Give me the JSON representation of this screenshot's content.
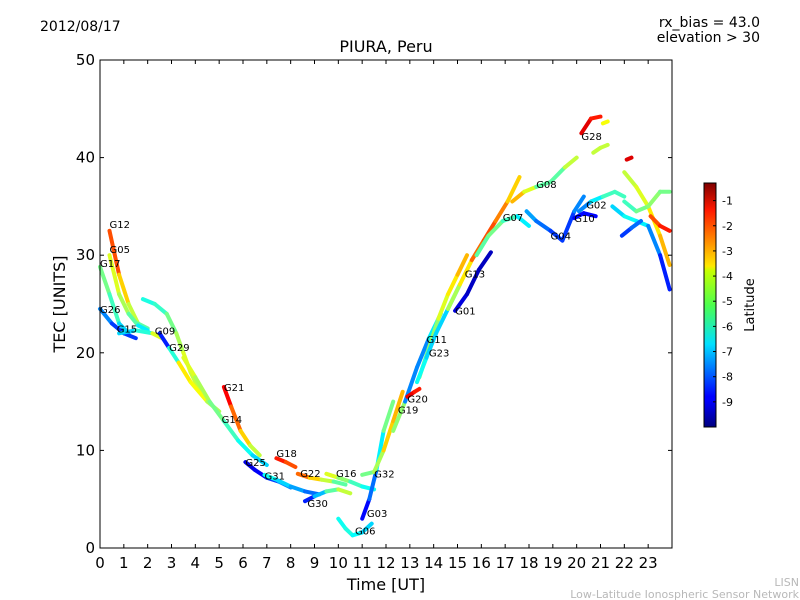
{
  "header": {
    "date": "2012/08/17",
    "bias_label": "rx_bias = 43.0",
    "elevation_label": "elevation > 30"
  },
  "chart_data": {
    "type": "scatter",
    "title": "PIURA, Peru",
    "xlabel": "Time [UT]",
    "ylabel": "TEC [UNITS]",
    "xlim": [
      0,
      24
    ],
    "ylim": [
      0,
      50
    ],
    "xticks": [
      0,
      1,
      2,
      3,
      4,
      5,
      6,
      7,
      8,
      9,
      10,
      11,
      12,
      13,
      14,
      15,
      16,
      17,
      18,
      19,
      20,
      21,
      22,
      23
    ],
    "yticks": [
      0,
      10,
      20,
      30,
      40,
      50
    ],
    "colorbar": {
      "label": "Latitude",
      "ticks": [
        -1,
        -2,
        -3,
        -4,
        -5,
        -6,
        -7,
        -8,
        -9
      ],
      "range": [
        -10,
        -0.3
      ]
    },
    "series": [
      {
        "name": "G12",
        "label_at": [
          0.4,
          32.8
        ],
        "points": [
          [
            0.4,
            32.5
          ],
          [
            0.8,
            28
          ],
          [
            1.2,
            25
          ],
          [
            1.6,
            23
          ],
          [
            2.0,
            22.5
          ]
        ],
        "lat": [
          -1.5,
          -3,
          -4,
          -5,
          -6
        ]
      },
      {
        "name": "G05",
        "label_at": [
          0.4,
          30.2
        ],
        "points": [
          [
            0.4,
            30
          ],
          [
            0.8,
            26
          ],
          [
            1.2,
            24
          ],
          [
            1.6,
            22.8
          ],
          [
            2.0,
            22.3
          ]
        ],
        "lat": [
          -4,
          -4.5,
          -5,
          -6,
          -7
        ]
      },
      {
        "name": "G17",
        "label_at": [
          0.0,
          28.8
        ],
        "points": [
          [
            0.0,
            28.8
          ],
          [
            0.4,
            26
          ],
          [
            0.8,
            23
          ],
          [
            1.2,
            22
          ]
        ],
        "lat": [
          -5,
          -5.5,
          -6,
          -7.5
        ]
      },
      {
        "name": "G26",
        "label_at": [
          0.0,
          24.1
        ],
        "points": [
          [
            0.0,
            24.5
          ],
          [
            0.5,
            23
          ],
          [
            1.0,
            22
          ],
          [
            1.5,
            21.5
          ]
        ],
        "lat": [
          -7,
          -8,
          -8.5,
          -8
        ]
      },
      {
        "name": "G15",
        "label_at": [
          0.7,
          22.1
        ],
        "points": [
          [
            0.8,
            22
          ],
          [
            1.5,
            22.3
          ],
          [
            2.2,
            22
          ],
          [
            2.6,
            21.5
          ]
        ],
        "lat": [
          -7,
          -6.5,
          -5.5,
          -3
        ]
      },
      {
        "name": "G09",
        "label_at": [
          2.3,
          21.9
        ],
        "points": [
          [
            1.8,
            25.5
          ],
          [
            2.3,
            25
          ],
          [
            2.8,
            24
          ],
          [
            3.2,
            22
          ],
          [
            3.5,
            20
          ],
          [
            3.8,
            18
          ],
          [
            4.2,
            16
          ]
        ],
        "lat": [
          -6,
          -6.2,
          -5.5,
          -5,
          -4.5,
          -4,
          -5
        ]
      },
      {
        "name": "G29",
        "label_at": [
          2.9,
          20.2
        ],
        "points": [
          [
            2.5,
            22
          ],
          [
            2.9,
            20.5
          ],
          [
            3.3,
            19
          ],
          [
            3.8,
            17
          ],
          [
            4.5,
            15
          ],
          [
            5.0,
            14
          ]
        ],
        "lat": [
          -9,
          -8,
          -4,
          -3.5,
          -4.5,
          -5
        ]
      },
      {
        "name": "G21",
        "label_at": [
          5.2,
          16.1
        ],
        "points": [
          [
            5.2,
            16.5
          ],
          [
            5.5,
            14.5
          ],
          [
            5.9,
            12
          ],
          [
            6.3,
            10.5
          ],
          [
            6.7,
            9.5
          ]
        ],
        "lat": [
          -1,
          -2,
          -3,
          -4,
          -5
        ]
      },
      {
        "name": "G14",
        "label_at": [
          5.1,
          12.8
        ],
        "points": [
          [
            3.5,
            19.5
          ],
          [
            4.0,
            17.5
          ],
          [
            4.6,
            15
          ],
          [
            5.2,
            13
          ],
          [
            5.8,
            11
          ],
          [
            6.4,
            9.5
          ],
          [
            7.0,
            8.5
          ]
        ],
        "lat": [
          -4,
          -4.5,
          -5,
          -5.5,
          -6,
          -6.5,
          -7
        ]
      },
      {
        "name": "G25",
        "label_at": [
          6.1,
          8.4
        ],
        "points": [
          [
            6.1,
            8.8
          ],
          [
            6.5,
            8
          ],
          [
            7.0,
            7.2
          ],
          [
            7.5,
            6.8
          ],
          [
            8.0,
            6.2
          ]
        ],
        "lat": [
          -9,
          -9.2,
          -8.5,
          -8,
          -7
        ]
      },
      {
        "name": "G31",
        "label_at": [
          6.9,
          7.0
        ],
        "points": [
          [
            6.9,
            7.5
          ],
          [
            7.4,
            7
          ],
          [
            8.0,
            6.3
          ],
          [
            8.6,
            5.8
          ],
          [
            9.2,
            5.5
          ]
        ],
        "lat": [
          -6,
          -6.5,
          -7,
          -7.5,
          -8
        ]
      },
      {
        "name": "G18",
        "label_at": [
          7.4,
          9.3
        ],
        "points": [
          [
            7.4,
            9.2
          ],
          [
            7.8,
            8.8
          ],
          [
            8.2,
            8.3
          ]
        ],
        "lat": [
          -1.5,
          -2,
          -2.5
        ]
      },
      {
        "name": "G22",
        "label_at": [
          8.4,
          7.3
        ],
        "points": [
          [
            8.3,
            7.6
          ],
          [
            8.8,
            7.2
          ],
          [
            9.3,
            7
          ],
          [
            9.8,
            6.8
          ],
          [
            10.3,
            6.5
          ]
        ],
        "lat": [
          -2,
          -3,
          -4,
          -5,
          -6
        ]
      },
      {
        "name": "G30",
        "label_at": [
          8.7,
          4.2
        ],
        "points": [
          [
            8.6,
            4.8
          ],
          [
            9.0,
            5.3
          ],
          [
            9.5,
            5.8
          ],
          [
            10.0,
            6
          ],
          [
            10.5,
            5.6
          ]
        ],
        "lat": [
          -9,
          -8,
          -6,
          -5,
          -4
        ]
      },
      {
        "name": "G16",
        "label_at": [
          9.9,
          7.3
        ],
        "points": [
          [
            9.5,
            7.6
          ],
          [
            10.0,
            7.2
          ],
          [
            10.5,
            6.8
          ],
          [
            11.0,
            6.3
          ],
          [
            11.5,
            6
          ]
        ],
        "lat": [
          -4,
          -4.5,
          -5.5,
          -6,
          -6.5
        ]
      },
      {
        "name": "G06",
        "label_at": [
          10.7,
          1.4
        ],
        "points": [
          [
            10.0,
            3
          ],
          [
            10.3,
            2
          ],
          [
            10.6,
            1.3
          ],
          [
            11.0,
            1.6
          ],
          [
            11.4,
            2.5
          ]
        ],
        "lat": [
          -6.5,
          -6,
          -6.2,
          -6.5,
          -7
        ]
      },
      {
        "name": "G03",
        "label_at": [
          11.2,
          3.2
        ],
        "points": [
          [
            11.0,
            3
          ],
          [
            11.3,
            5
          ],
          [
            11.6,
            8
          ],
          [
            11.9,
            12
          ],
          [
            12.3,
            15
          ]
        ],
        "lat": [
          -9,
          -8.5,
          -7,
          -6,
          -4.5
        ]
      },
      {
        "name": "G32",
        "label_at": [
          11.5,
          7.2
        ],
        "points": [
          [
            11.0,
            7.5
          ],
          [
            11.5,
            7.8
          ],
          [
            11.9,
            10
          ],
          [
            12.3,
            13
          ],
          [
            12.7,
            16
          ]
        ],
        "lat": [
          -5,
          -5.5,
          -4,
          -3,
          -3.5
        ]
      },
      {
        "name": "G19",
        "label_at": [
          12.5,
          13.8
        ],
        "points": [
          [
            12.3,
            12
          ],
          [
            12.8,
            15
          ],
          [
            13.3,
            18.5
          ],
          [
            13.8,
            21.5
          ],
          [
            14.3,
            24
          ]
        ],
        "lat": [
          -3,
          -7,
          -8,
          -7,
          -6
        ]
      },
      {
        "name": "G20",
        "label_at": [
          12.9,
          14.9
        ],
        "points": [
          [
            12.9,
            15.5
          ],
          [
            13.2,
            16
          ],
          [
            13.4,
            16.3
          ]
        ],
        "lat": [
          -1.2,
          -1.5,
          -2
        ]
      },
      {
        "name": "G11",
        "label_at": [
          13.7,
          21.0
        ],
        "points": [
          [
            13.4,
            17.5
          ],
          [
            13.8,
            20.5
          ],
          [
            14.2,
            23.5
          ],
          [
            14.6,
            26
          ],
          [
            15.0,
            28
          ],
          [
            15.4,
            30
          ]
        ],
        "lat": [
          -5,
          -5.5,
          -4.5,
          -4,
          -3.5,
          -3
        ]
      },
      {
        "name": "G23",
        "label_at": [
          13.8,
          19.6
        ],
        "points": [
          [
            13.3,
            17
          ],
          [
            13.7,
            19.5
          ],
          [
            14.1,
            22
          ],
          [
            14.6,
            24.5
          ],
          [
            15.1,
            27
          ]
        ],
        "lat": [
          -6,
          -6.5,
          -7,
          -6.5,
          -6
        ]
      },
      {
        "name": "G01",
        "label_at": [
          14.9,
          23.9
        ],
        "points": [
          [
            14.9,
            24.3
          ],
          [
            15.4,
            26
          ],
          [
            15.9,
            28.5
          ],
          [
            16.4,
            30.3
          ]
        ],
        "lat": [
          -9,
          -9.2,
          -9.5,
          -9.3
        ]
      },
      {
        "name": "G13",
        "label_at": [
          15.3,
          27.7
        ],
        "points": [
          [
            14.6,
            24.5
          ],
          [
            15.1,
            27
          ],
          [
            15.6,
            29.5
          ],
          [
            16.1,
            31.5
          ],
          [
            16.6,
            33.5
          ],
          [
            17.1,
            35.5
          ],
          [
            17.6,
            38
          ]
        ],
        "lat": [
          -5,
          -4.5,
          -3,
          -2,
          -2.5,
          -3,
          -4
        ]
      },
      {
        "name": "G07",
        "label_at": [
          16.9,
          33.5
        ],
        "points": [
          [
            15.8,
            30
          ],
          [
            16.3,
            32
          ],
          [
            16.9,
            33.5
          ],
          [
            17.5,
            34
          ],
          [
            18.0,
            33
          ]
        ],
        "lat": [
          -6,
          -5,
          -5.5,
          -6,
          -7
        ]
      },
      {
        "name": "G08",
        "label_at": [
          18.3,
          36.9
        ],
        "points": [
          [
            17.3,
            35.5
          ],
          [
            17.8,
            36.5
          ],
          [
            18.3,
            37
          ],
          [
            18.9,
            37.5
          ],
          [
            19.5,
            39
          ],
          [
            20.0,
            40
          ]
        ],
        "lat": [
          -3,
          -3.5,
          -5,
          -6,
          -5,
          -4
        ]
      },
      {
        "name": "G04",
        "label_at": [
          18.9,
          31.6
        ],
        "points": [
          [
            17.9,
            34.5
          ],
          [
            18.3,
            33.5
          ],
          [
            18.9,
            32.5
          ],
          [
            19.4,
            31.5
          ],
          [
            19.9,
            34.5
          ],
          [
            20.3,
            36
          ]
        ],
        "lat": [
          -7,
          -7.5,
          -8,
          -8.5,
          -8,
          -7
        ]
      },
      {
        "name": "G02",
        "label_at": [
          20.4,
          34.8
        ],
        "points": [
          [
            20.1,
            34.5
          ],
          [
            20.6,
            35.5
          ],
          [
            21.1,
            36
          ],
          [
            21.6,
            36.5
          ],
          [
            22.0,
            36
          ]
        ],
        "lat": [
          -8,
          -7,
          -6,
          -5.5,
          -6
        ]
      },
      {
        "name": "G10",
        "label_at": [
          19.9,
          33.4
        ],
        "points": [
          [
            19.9,
            33.8
          ],
          [
            20.3,
            34.3
          ],
          [
            20.8,
            34
          ]
        ],
        "lat": [
          -9,
          -8.5,
          -9
        ]
      },
      {
        "name": "G28",
        "label_at": [
          20.2,
          41.8
        ],
        "points": [
          [
            20.2,
            42.5
          ],
          [
            20.6,
            44
          ],
          [
            21.0,
            44.2
          ]
        ],
        "lat": [
          -1,
          -1.5,
          -2
        ]
      },
      {
        "name": "",
        "label_at": null,
        "points": [
          [
            20.7,
            40.5
          ],
          [
            21.0,
            41
          ],
          [
            21.3,
            41.3
          ]
        ],
        "lat": [
          -4.5,
          -4.5,
          -4.5
        ]
      },
      {
        "name": "",
        "label_at": null,
        "points": [
          [
            21.1,
            43.5
          ],
          [
            21.3,
            43.7
          ]
        ],
        "lat": [
          -4,
          -4
        ]
      },
      {
        "name": "",
        "label_at": null,
        "points": [
          [
            22.1,
            39.8
          ],
          [
            22.3,
            40
          ]
        ],
        "lat": [
          -1.2,
          -1.2
        ]
      },
      {
        "name": "",
        "label_at": null,
        "points": [
          [
            22.0,
            38.5
          ],
          [
            22.5,
            37
          ],
          [
            23.0,
            35
          ],
          [
            23.5,
            32
          ],
          [
            23.9,
            29
          ]
        ],
        "lat": [
          -4.5,
          -4.5,
          -4,
          -3.5,
          -3
        ]
      },
      {
        "name": "",
        "label_at": null,
        "points": [
          [
            22.0,
            35.5
          ],
          [
            22.5,
            34.5
          ],
          [
            23.0,
            35
          ],
          [
            23.5,
            36.5
          ],
          [
            23.9,
            36.5
          ]
        ],
        "lat": [
          -6,
          -5.5,
          -5,
          -5,
          -5.5
        ]
      },
      {
        "name": "",
        "label_at": null,
        "points": [
          [
            21.5,
            35
          ],
          [
            22.0,
            34
          ],
          [
            22.5,
            33.5
          ],
          [
            23.0,
            33
          ],
          [
            23.5,
            30
          ],
          [
            23.9,
            26.5
          ]
        ],
        "lat": [
          -7,
          -6.5,
          -6,
          -7,
          -8,
          -9
        ]
      },
      {
        "name": "",
        "label_at": null,
        "points": [
          [
            23.1,
            34
          ],
          [
            23.5,
            33
          ],
          [
            23.9,
            32.5
          ]
        ],
        "lat": [
          -2.5,
          -2,
          -1.5
        ]
      },
      {
        "name": "",
        "label_at": null,
        "points": [
          [
            21.9,
            32
          ],
          [
            22.3,
            32.8
          ],
          [
            22.7,
            33.5
          ]
        ],
        "lat": [
          -8.5,
          -8,
          -7.5
        ]
      }
    ]
  },
  "footer": {
    "credit_short": "LISN",
    "credit_long": "Low-Latitude Ionospheric Sensor Network"
  }
}
